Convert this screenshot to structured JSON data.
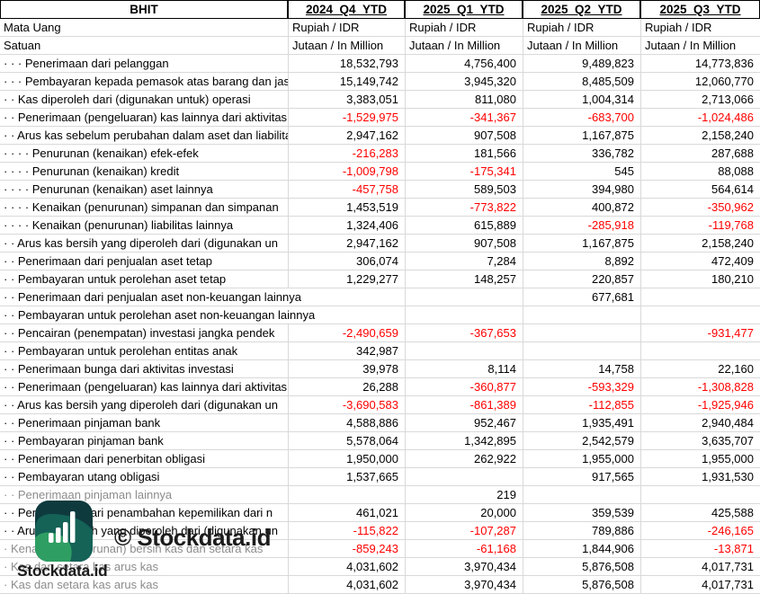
{
  "company": "BHIT",
  "columns": [
    "2024_Q4_YTD",
    "2025_Q1_YTD",
    "2025_Q2_YTD",
    "2025_Q3_YTD"
  ],
  "meta": {
    "currency": {
      "label": "Mata Uang",
      "values": [
        "Rupiah / IDR",
        "Rupiah / IDR",
        "Rupiah / IDR",
        "Rupiah / IDR"
      ]
    },
    "unit": {
      "label": "Satuan",
      "values": [
        "Jutaan / In Million",
        "Jutaan / In Million",
        "Jutaan / In Million",
        "Jutaan / In Million"
      ]
    }
  },
  "rows": [
    {
      "label": "· · · Penerimaan dari pelanggan",
      "values": [
        "18,532,793",
        "4,756,400",
        "9,489,823",
        "14,773,836"
      ],
      "muted": false,
      "spill": false
    },
    {
      "label": "· · · Pembayaran kepada pemasok atas barang dan jasa",
      "values": [
        "15,149,742",
        "3,945,320",
        "8,485,509",
        "12,060,770"
      ],
      "muted": false,
      "spill": false
    },
    {
      "label": "· · Kas diperoleh dari (digunakan untuk) operasi",
      "values": [
        "3,383,051",
        "811,080",
        "1,004,314",
        "2,713,066"
      ],
      "muted": false,
      "spill": false
    },
    {
      "label": "· · Penerimaan (pengeluaran) kas lainnya dari aktivitas",
      "values": [
        "-1,529,975",
        "-341,367",
        "-683,700",
        "-1,024,486"
      ],
      "muted": false,
      "spill": false
    },
    {
      "label": "· · Arus kas sebelum perubahan dalam aset dan liabilitas",
      "values": [
        "2,947,162",
        "907,508",
        "1,167,875",
        "2,158,240"
      ],
      "muted": false,
      "spill": false
    },
    {
      "label": "· · · · Penurunan (kenaikan) efek-efek",
      "values": [
        "-216,283",
        "181,566",
        "336,782",
        "287,688"
      ],
      "muted": false,
      "spill": false
    },
    {
      "label": "· · · · Penurunan (kenaikan) kredit",
      "values": [
        "-1,009,798",
        "-175,341",
        "545",
        "88,088"
      ],
      "muted": false,
      "spill": false
    },
    {
      "label": "· · · · Penurunan (kenaikan) aset lainnya",
      "values": [
        "-457,758",
        "589,503",
        "394,980",
        "564,614"
      ],
      "muted": false,
      "spill": false
    },
    {
      "label": "· · · · Kenaikan (penurunan) simpanan dan simpanan",
      "values": [
        "1,453,519",
        "-773,822",
        "400,872",
        "-350,962"
      ],
      "muted": false,
      "spill": false
    },
    {
      "label": "· · · · Kenaikan (penurunan) liabilitas lainnya",
      "values": [
        "1,324,406",
        "615,889",
        "-285,918",
        "-119,768"
      ],
      "muted": false,
      "spill": false
    },
    {
      "label": "· · Arus kas bersih yang diperoleh dari (digunakan un",
      "values": [
        "2,947,162",
        "907,508",
        "1,167,875",
        "2,158,240"
      ],
      "muted": false,
      "spill": false
    },
    {
      "label": "· · Penerimaan dari penjualan aset tetap",
      "values": [
        "306,074",
        "7,284",
        "8,892",
        "472,409"
      ],
      "muted": false,
      "spill": false
    },
    {
      "label": "· · Pembayaran untuk perolehan aset tetap",
      "values": [
        "1,229,277",
        "148,257",
        "220,857",
        "180,210"
      ],
      "muted": false,
      "spill": false
    },
    {
      "label": "· · Penerimaan dari penjualan aset non-keuangan lainnya",
      "values": [
        "",
        "",
        "677,681",
        ""
      ],
      "muted": false,
      "spill": true
    },
    {
      "label": "· · Pembayaran untuk perolehan aset non-keuangan lainnya",
      "values": [
        "",
        "",
        "",
        ""
      ],
      "muted": false,
      "spill": true
    },
    {
      "label": "· · Pencairan (penempatan) investasi jangka pendek",
      "values": [
        "-2,490,659",
        "-367,653",
        "",
        "-931,477"
      ],
      "muted": false,
      "spill": false
    },
    {
      "label": "· · Pembayaran untuk perolehan entitas anak",
      "values": [
        "342,987",
        "",
        "",
        ""
      ],
      "muted": false,
      "spill": false
    },
    {
      "label": "· · Penerimaan bunga dari aktivitas investasi",
      "values": [
        "39,978",
        "8,114",
        "14,758",
        "22,160"
      ],
      "muted": false,
      "spill": false
    },
    {
      "label": "· · Penerimaan (pengeluaran) kas lainnya dari aktivitas",
      "values": [
        "26,288",
        "-360,877",
        "-593,329",
        "-1,308,828"
      ],
      "muted": false,
      "spill": false
    },
    {
      "label": "· · Arus kas bersih yang diperoleh dari (digunakan un",
      "values": [
        "-3,690,583",
        "-861,389",
        "-112,855",
        "-1,925,946"
      ],
      "muted": false,
      "spill": false
    },
    {
      "label": "· · Penerimaan pinjaman bank",
      "values": [
        "4,588,886",
        "952,467",
        "1,935,491",
        "2,940,484"
      ],
      "muted": false,
      "spill": false
    },
    {
      "label": "· · Pembayaran pinjaman bank",
      "values": [
        "5,578,064",
        "1,342,895",
        "2,542,579",
        "3,635,707"
      ],
      "muted": false,
      "spill": false
    },
    {
      "label": "· · Penerimaan dari penerbitan obligasi",
      "values": [
        "1,950,000",
        "262,922",
        "1,955,000",
        "1,955,000"
      ],
      "muted": false,
      "spill": false
    },
    {
      "label": "· · Pembayaran utang obligasi",
      "values": [
        "1,537,665",
        "",
        "917,565",
        "1,931,530"
      ],
      "muted": false,
      "spill": false
    },
    {
      "label": "· · Penerimaan pinjaman lainnya",
      "values": [
        "",
        "219",
        "",
        ""
      ],
      "muted": true,
      "spill": false
    },
    {
      "label": "· · Penerimaan dari penambahan kepemilikan dari n",
      "values": [
        "461,021",
        "20,000",
        "359,539",
        "425,588"
      ],
      "muted": false,
      "spill": false
    },
    {
      "label": "· · Arus kas bersih yang diperoleh dari (digunakan un",
      "values": [
        "-115,822",
        "-107,287",
        "789,886",
        "-246,165"
      ],
      "muted": false,
      "spill": false
    },
    {
      "label": "· Kenaikan (penurunan) bersih kas dan setara kas",
      "values": [
        "-859,243",
        "-61,168",
        "1,844,906",
        "-13,871"
      ],
      "muted": true,
      "spill": false
    },
    {
      "label": "· Kas dan setara kas arus kas",
      "values": [
        "4,031,602",
        "3,970,434",
        "5,876,508",
        "4,017,731"
      ],
      "muted": true,
      "spill": false
    },
    {
      "label": "· Kas dan setara kas arus kas",
      "values": [
        "4,031,602",
        "3,970,434",
        "5,876,508",
        "4,017,731"
      ],
      "muted": true,
      "spill": false
    }
  ],
  "watermark": {
    "center": "© Stockdata.id",
    "caption": "Stockdata.id"
  },
  "colors": {
    "negative": "#ff0000",
    "muted": "#8c8c8c",
    "gridline": "#d9d9d9",
    "logo_dark": "#0e3a3e",
    "logo_teal": "#156257",
    "logo_green": "#2f9e63"
  }
}
